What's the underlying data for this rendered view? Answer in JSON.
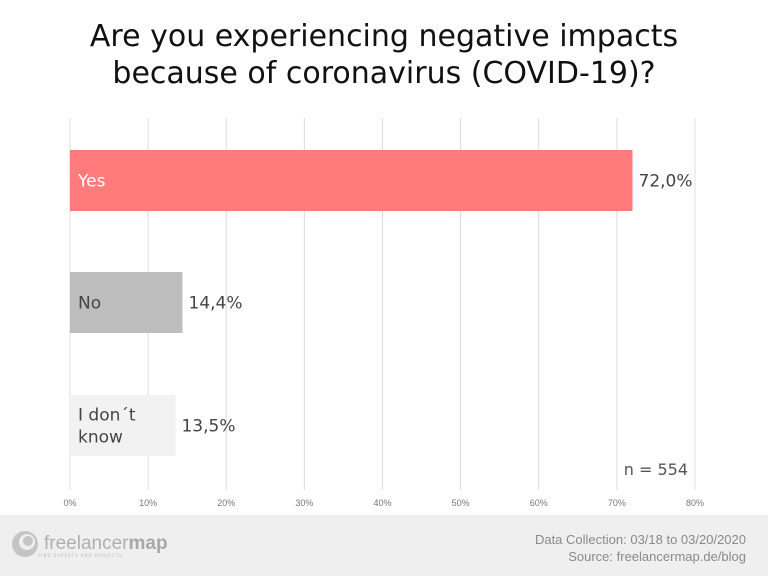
{
  "chart_data": {
    "type": "bar",
    "orientation": "horizontal",
    "title": "Are you experiencing negative impacts because of coronavirus (COVID-19)?",
    "title_lines": [
      "Are you experiencing negative impacts",
      "because of coronavirus (COVID-19)?"
    ],
    "categories": [
      "Yes",
      "No",
      "I don´t know"
    ],
    "category_lines": [
      [
        "Yes"
      ],
      [
        "No"
      ],
      [
        "I don´t",
        "know"
      ]
    ],
    "values": [
      72.0,
      14.4,
      13.5
    ],
    "data_labels": [
      "72,0%",
      "14,4%",
      "13,5%"
    ],
    "colors": [
      "#ff7b7b",
      "#bdbdbd",
      "#f2f2f2"
    ],
    "xlim": [
      0,
      80
    ],
    "xticks": [
      "0%",
      "10%",
      "20%",
      "30%",
      "40%",
      "50%",
      "60%",
      "70%",
      "80%"
    ],
    "grid": true,
    "annotation": "n = 554"
  },
  "footer": {
    "data_collection": "Data Collection: 03/18 to 03/20/2020",
    "source": "Source: freelancermap.de/blog",
    "logo_text_light": "freelancer",
    "logo_text_bold": "map",
    "logo_tagline": "FIND EXPERTS AND PROJECTS"
  }
}
